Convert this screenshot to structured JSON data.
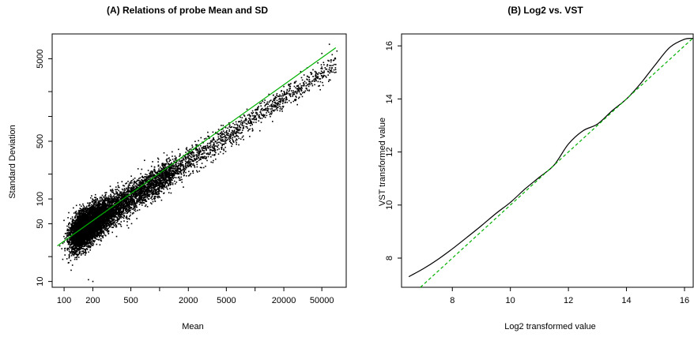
{
  "chart_data": [
    {
      "type": "scatter",
      "title": "(A) Relations of probe Mean and SD",
      "xlabel": "Mean",
      "ylabel": "Standard Deviation",
      "xscale": "log",
      "yscale": "log",
      "xlim": [
        75,
        90000
      ],
      "ylim": [
        8.5,
        10000
      ],
      "xticks": [
        100,
        200,
        500,
        2000,
        5000,
        20000,
        50000
      ],
      "xtick_labels": [
        "100",
        "200",
        "500",
        "2000",
        "5000",
        "20000",
        "50000"
      ],
      "yticks": [
        10,
        50,
        100,
        500,
        5000
      ],
      "ytick_labels": [
        "10",
        "50",
        "100",
        "500",
        "5000"
      ],
      "series": [
        {
          "kind": "points",
          "color": "#000000",
          "approx_count": 9000,
          "representative_points": [
            [
              90,
              27
            ],
            [
              100,
              30
            ],
            [
              130,
              38
            ],
            [
              150,
              42
            ],
            [
              200,
              52
            ],
            [
              300,
              70
            ],
            [
              500,
              100
            ],
            [
              800,
              145
            ],
            [
              1000,
              170
            ],
            [
              2000,
              310
            ],
            [
              3000,
              430
            ],
            [
              5000,
              650
            ],
            [
              10000,
              1200
            ],
            [
              20000,
              2300
            ],
            [
              30000,
              3500
            ],
            [
              50000,
              5800
            ],
            [
              60000,
              7500
            ],
            [
              72000,
              6200
            ],
            [
              200,
              10
            ],
            [
              180,
              10.5
            ]
          ]
        },
        {
          "kind": "fit-line",
          "color": "#00b000",
          "points": [
            [
              85,
              27
            ],
            [
              70000,
              6800
            ]
          ]
        }
      ],
      "grid": false,
      "legend": "none"
    },
    {
      "type": "line",
      "title": "(B) Log2 vs. VST",
      "xlabel": "Log2 transformed value",
      "ylabel": "VST transformed value",
      "xlim": [
        6.25,
        16.3
      ],
      "ylim": [
        6.9,
        16.45
      ],
      "xticks": [
        8,
        10,
        12,
        14,
        16
      ],
      "yticks": [
        8,
        10,
        12,
        14,
        16
      ],
      "series": [
        {
          "kind": "solid",
          "color": "#000000",
          "x": [
            6.5,
            7.0,
            7.5,
            8.0,
            8.5,
            9.0,
            9.5,
            10.0,
            10.5,
            11.0,
            11.5,
            12.0,
            12.5,
            13.0,
            13.5,
            14.0,
            14.5,
            15.0,
            15.5,
            16.0,
            16.3
          ],
          "y": [
            7.3,
            7.6,
            7.95,
            8.35,
            8.78,
            9.22,
            9.68,
            10.1,
            10.6,
            11.05,
            11.5,
            12.3,
            12.8,
            13.05,
            13.55,
            14.0,
            14.6,
            15.3,
            15.95,
            16.25,
            16.28
          ]
        },
        {
          "kind": "dashed",
          "color": "#00b000",
          "x": [
            6.9,
            16.3
          ],
          "y": [
            6.9,
            16.3
          ]
        }
      ],
      "grid": false,
      "legend": "none"
    }
  ]
}
